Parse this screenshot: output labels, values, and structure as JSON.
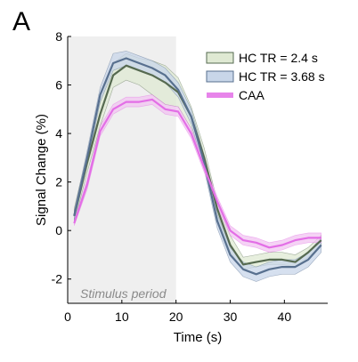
{
  "panel_label": "A",
  "chart_data": {
    "type": "line",
    "xlabel": "Time (s)",
    "ylabel": "Signal Change (%)",
    "xlim": [
      0,
      48
    ],
    "ylim": [
      -3,
      8
    ],
    "xticks": [
      0,
      10,
      20,
      30,
      40
    ],
    "yticks": [
      -2,
      0,
      2,
      4,
      6,
      8
    ],
    "grid": false,
    "legend_position": "top-right",
    "annotations": [
      {
        "text": "Stimulus period",
        "type": "shaded-region",
        "x_start": 0,
        "x_end": 20,
        "color": "#efefef"
      }
    ],
    "series": [
      {
        "name": "HC TR = 2.4 s",
        "line_color": "#566a50",
        "band_color": "#dfe9d3",
        "x": [
          1.2,
          3.6,
          6.0,
          8.4,
          10.8,
          13.2,
          15.6,
          18.0,
          20.4,
          22.8,
          25.2,
          27.6,
          30.0,
          32.4,
          34.8,
          37.2,
          39.6,
          42.0,
          44.4,
          46.8
        ],
        "y": [
          0.6,
          2.8,
          4.8,
          6.4,
          6.8,
          6.6,
          6.4,
          6.1,
          5.7,
          4.7,
          3.0,
          0.9,
          -0.6,
          -1.4,
          -1.3,
          -1.2,
          -1.2,
          -1.3,
          -0.9,
          -0.4
        ],
        "lower": [
          0.3,
          2.4,
          4.3,
          5.9,
          6.2,
          6.0,
          5.6,
          5.2,
          5.1,
          4.2,
          2.6,
          0.6,
          -0.9,
          -1.6,
          -1.5,
          -1.4,
          -1.4,
          -1.5,
          -1.1,
          -0.6
        ],
        "upper": [
          0.9,
          3.2,
          5.3,
          6.9,
          7.3,
          7.1,
          7.0,
          6.8,
          6.3,
          5.1,
          3.4,
          1.2,
          -0.2,
          -1.1,
          -1.0,
          -0.9,
          -0.9,
          -1.0,
          -0.7,
          -0.2
        ]
      },
      {
        "name": "HC TR = 3.68 s",
        "line_color": "#58708f",
        "band_color": "#c8d6e9",
        "x": [
          1.2,
          3.6,
          6.0,
          8.4,
          10.8,
          13.2,
          15.6,
          18.0,
          20.4,
          22.8,
          25.2,
          27.6,
          30.0,
          32.4,
          34.8,
          37.2,
          39.6,
          42.0,
          44.4,
          46.8
        ],
        "y": [
          0.6,
          3.0,
          5.6,
          6.9,
          7.1,
          6.9,
          6.7,
          6.4,
          5.8,
          4.7,
          2.8,
          0.4,
          -1.0,
          -1.6,
          -1.8,
          -1.6,
          -1.5,
          -1.5,
          -1.2,
          -0.6
        ],
        "lower": [
          0.4,
          2.7,
          5.3,
          6.6,
          6.8,
          6.6,
          6.4,
          6.1,
          5.5,
          4.4,
          2.5,
          0.1,
          -1.3,
          -1.9,
          -2.1,
          -1.9,
          -1.8,
          -1.8,
          -1.5,
          -0.9
        ],
        "upper": [
          0.8,
          3.3,
          5.9,
          7.3,
          7.4,
          7.2,
          7.0,
          6.7,
          6.1,
          5.0,
          3.1,
          0.7,
          -0.7,
          -1.3,
          -1.5,
          -1.3,
          -1.2,
          -1.2,
          -0.9,
          -0.3
        ]
      },
      {
        "name": "CAA",
        "line_color": "#e36ee6",
        "band_color": "#f2c4f2",
        "x": [
          1.2,
          3.6,
          6.0,
          8.4,
          10.8,
          13.2,
          15.6,
          18.0,
          20.4,
          22.8,
          25.2,
          27.6,
          30.0,
          32.4,
          34.8,
          37.2,
          39.6,
          42.0,
          44.4,
          46.8
        ],
        "y": [
          0.3,
          1.9,
          4.1,
          5.0,
          5.3,
          5.3,
          5.4,
          5.0,
          4.9,
          4.0,
          2.6,
          1.2,
          0.0,
          -0.4,
          -0.5,
          -0.7,
          -0.6,
          -0.4,
          -0.3,
          -0.3
        ],
        "lower": [
          0.2,
          1.7,
          3.9,
          4.8,
          5.1,
          5.1,
          5.2,
          4.8,
          4.7,
          3.8,
          2.4,
          1.0,
          -0.2,
          -0.6,
          -0.7,
          -0.9,
          -0.8,
          -0.6,
          -0.5,
          -0.5
        ],
        "upper": [
          0.4,
          2.1,
          4.3,
          5.2,
          5.5,
          5.5,
          5.6,
          5.2,
          5.1,
          4.2,
          2.8,
          1.4,
          0.2,
          -0.2,
          -0.3,
          -0.5,
          -0.4,
          -0.2,
          -0.1,
          -0.1
        ]
      }
    ]
  }
}
